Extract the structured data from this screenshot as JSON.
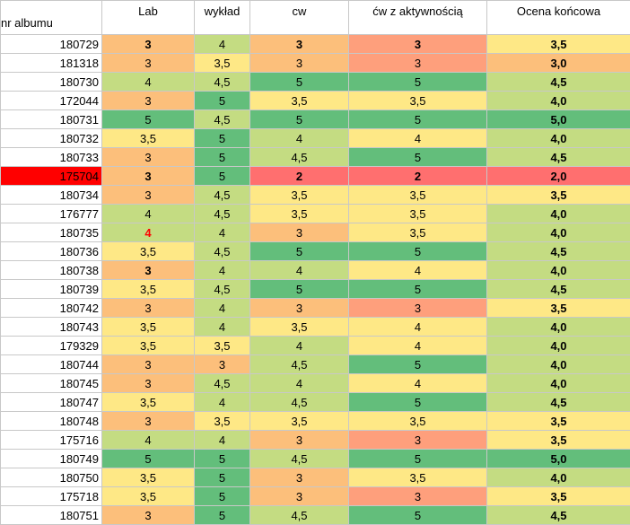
{
  "columns": [
    "nr albumu",
    "Lab",
    "wykład",
    "cw",
    "ćw z aktywnością",
    "Ocena końcowa"
  ],
  "colors": {
    "2": "#ff6f6f",
    "3": "#fcbf7b",
    "3,5": "#fee886",
    "4": "#c4dc82",
    "4,5": "#c4dc82",
    "5": "#63be7b",
    "highlight_row_id": "#ff0000",
    "red_text": "#ff0000"
  },
  "rows": [
    {
      "id": "180729",
      "lab": "3",
      "wyklad": "4",
      "cw": "3",
      "cw_akt": "3",
      "ocena": "3,5",
      "lab_bold": true,
      "cw_bold": true,
      "akt_bold": true
    },
    {
      "id": "181318",
      "lab": "3",
      "wyklad": "3,5",
      "cw": "3",
      "cw_akt": "3",
      "ocena": "3,0"
    },
    {
      "id": "180730",
      "lab": "4",
      "wyklad": "4,5",
      "cw": "5",
      "cw_akt": "5",
      "ocena": "4,5"
    },
    {
      "id": "172044",
      "lab": "3",
      "wyklad": "5",
      "cw": "3,5",
      "cw_akt": "3,5",
      "ocena": "4,0"
    },
    {
      "id": "180731",
      "lab": "5",
      "wyklad": "4,5",
      "cw": "5",
      "cw_akt": "5",
      "ocena": "5,0"
    },
    {
      "id": "180732",
      "lab": "3,5",
      "wyklad": "5",
      "cw": "4",
      "cw_akt": "4",
      "ocena": "4,0"
    },
    {
      "id": "180733",
      "lab": "3",
      "wyklad": "5",
      "cw": "4,5",
      "cw_akt": "5",
      "ocena": "4,5"
    },
    {
      "id": "175704",
      "lab": "3",
      "wyklad": "5",
      "cw": "2",
      "cw_akt": "2",
      "ocena": "2,0",
      "highlight": true,
      "lab_bold": true,
      "cw_bold": true,
      "akt_bold": true
    },
    {
      "id": "180734",
      "lab": "3",
      "wyklad": "4,5",
      "cw": "3,5",
      "cw_akt": "3,5",
      "ocena": "3,5"
    },
    {
      "id": "176777",
      "lab": "4",
      "wyklad": "4,5",
      "cw": "3,5",
      "cw_akt": "3,5",
      "ocena": "4,0"
    },
    {
      "id": "180735",
      "lab": "4",
      "wyklad": "4",
      "cw": "3",
      "cw_akt": "3,5",
      "ocena": "4,0",
      "lab_red": true,
      "lab_bold": true
    },
    {
      "id": "180736",
      "lab": "3,5",
      "wyklad": "4,5",
      "cw": "5",
      "cw_akt": "5",
      "ocena": "4,5"
    },
    {
      "id": "180738",
      "lab": "3",
      "wyklad": "4",
      "cw": "4",
      "cw_akt": "4",
      "ocena": "4,0",
      "lab_bold": true
    },
    {
      "id": "180739",
      "lab": "3,5",
      "wyklad": "4,5",
      "cw": "5",
      "cw_akt": "5",
      "ocena": "4,5"
    },
    {
      "id": "180742",
      "lab": "3",
      "wyklad": "4",
      "cw": "3",
      "cw_akt": "3",
      "ocena": "3,5"
    },
    {
      "id": "180743",
      "lab": "3,5",
      "wyklad": "4",
      "cw": "3,5",
      "cw_akt": "4",
      "ocena": "4,0"
    },
    {
      "id": "179329",
      "lab": "3,5",
      "wyklad": "3,5",
      "cw": "4",
      "cw_akt": "4",
      "ocena": "4,0"
    },
    {
      "id": "180744",
      "lab": "3",
      "wyklad": "3",
      "cw": "4,5",
      "cw_akt": "5",
      "ocena": "4,0"
    },
    {
      "id": "180745",
      "lab": "3",
      "wyklad": "4,5",
      "cw": "4",
      "cw_akt": "4",
      "ocena": "4,0"
    },
    {
      "id": "180747",
      "lab": "3,5",
      "wyklad": "4",
      "cw": "4,5",
      "cw_akt": "5",
      "ocena": "4,5"
    },
    {
      "id": "180748",
      "lab": "3",
      "wyklad": "3,5",
      "cw": "3,5",
      "cw_akt": "3,5",
      "ocena": "3,5"
    },
    {
      "id": "175716",
      "lab": "4",
      "wyklad": "4",
      "cw": "3",
      "cw_akt": "3",
      "ocena": "3,5"
    },
    {
      "id": "180749",
      "lab": "5",
      "wyklad": "5",
      "cw": "4,5",
      "cw_akt": "5",
      "ocena": "5,0"
    },
    {
      "id": "180750",
      "lab": "3,5",
      "wyklad": "5",
      "cw": "3",
      "cw_akt": "3,5",
      "ocena": "4,0"
    },
    {
      "id": "175718",
      "lab": "3,5",
      "wyklad": "5",
      "cw": "3",
      "cw_akt": "3",
      "ocena": "3,5"
    },
    {
      "id": "180751",
      "lab": "3",
      "wyklad": "5",
      "cw": "4,5",
      "cw_akt": "5",
      "ocena": "4,5"
    }
  ]
}
